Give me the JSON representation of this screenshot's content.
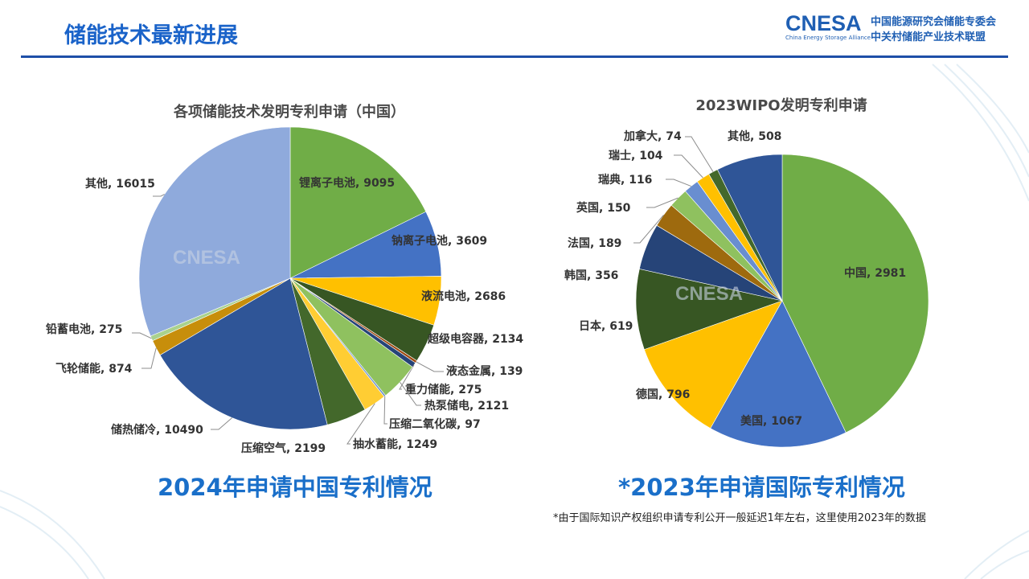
{
  "header": {
    "title": "储能技术最新进展",
    "logo_main": "CNESA",
    "logo_sub": "China Energy Storage Alliance",
    "logo_cn_line1": "中国能源研究会储能专委会",
    "logo_cn_line2": "中关村储能产业技术联盟"
  },
  "captions": {
    "left": "2024年申请中国专利情况",
    "right": "*2023年申请国际专利情况",
    "note": "*由于国际知识产权组织申请专利公开一般延迟1年左右，这里使用2023年的数据"
  },
  "chart_data": [
    {
      "type": "pie",
      "title": "各项储能技术发明专利申请（中国）",
      "slices": [
        {
          "label": "锂离子电池",
          "value": 9095,
          "color": "#70ad47"
        },
        {
          "label": "钠离子电池",
          "value": 3609,
          "color": "#4472c4"
        },
        {
          "label": "液流电池",
          "value": 2686,
          "color": "#ffc000"
        },
        {
          "label": "超级电容器",
          "value": 2134,
          "color": "#375623"
        },
        {
          "label": "液态金属",
          "value": 139,
          "color": "#9e480e"
        },
        {
          "label": "重力储能",
          "value": 275,
          "color": "#264478"
        },
        {
          "label": "热泵储电",
          "value": 2121,
          "color": "#8fc15f"
        },
        {
          "label": "压缩二氧化碳",
          "value": 97,
          "color": "#698ed0"
        },
        {
          "label": "抽水蓄能",
          "value": 1249,
          "color": "#ffcd33"
        },
        {
          "label": "压缩空气",
          "value": 2199,
          "color": "#43682b"
        },
        {
          "label": "储热储冷",
          "value": 10490,
          "color": "#2f5597"
        },
        {
          "label": "飞轮储能",
          "value": 874,
          "color": "#c78e0b"
        },
        {
          "label": "铅蓄电池",
          "value": 275,
          "color": "#a9d18e"
        },
        {
          "label": "其他",
          "value": 16015,
          "color": "#8faadc"
        }
      ]
    },
    {
      "type": "pie",
      "title": "2023WIPO发明专利申请",
      "slices": [
        {
          "label": "中国",
          "value": 2981,
          "color": "#70ad47"
        },
        {
          "label": "美国",
          "value": 1067,
          "color": "#4472c4"
        },
        {
          "label": "德国",
          "value": 796,
          "color": "#ffc000"
        },
        {
          "label": "日本",
          "value": 619,
          "color": "#375623"
        },
        {
          "label": "韩国",
          "value": 356,
          "color": "#264478"
        },
        {
          "label": "法国",
          "value": 189,
          "color": "#9e6a0e"
        },
        {
          "label": "英国",
          "value": 150,
          "color": "#8fc15f"
        },
        {
          "label": "瑞典",
          "value": 116,
          "color": "#698ed0"
        },
        {
          "label": "瑞士",
          "value": 104,
          "color": "#ffc000"
        },
        {
          "label": "加拿大",
          "value": 74,
          "color": "#43682b"
        },
        {
          "label": "其他",
          "value": 508,
          "color": "#2f5597"
        }
      ]
    }
  ]
}
